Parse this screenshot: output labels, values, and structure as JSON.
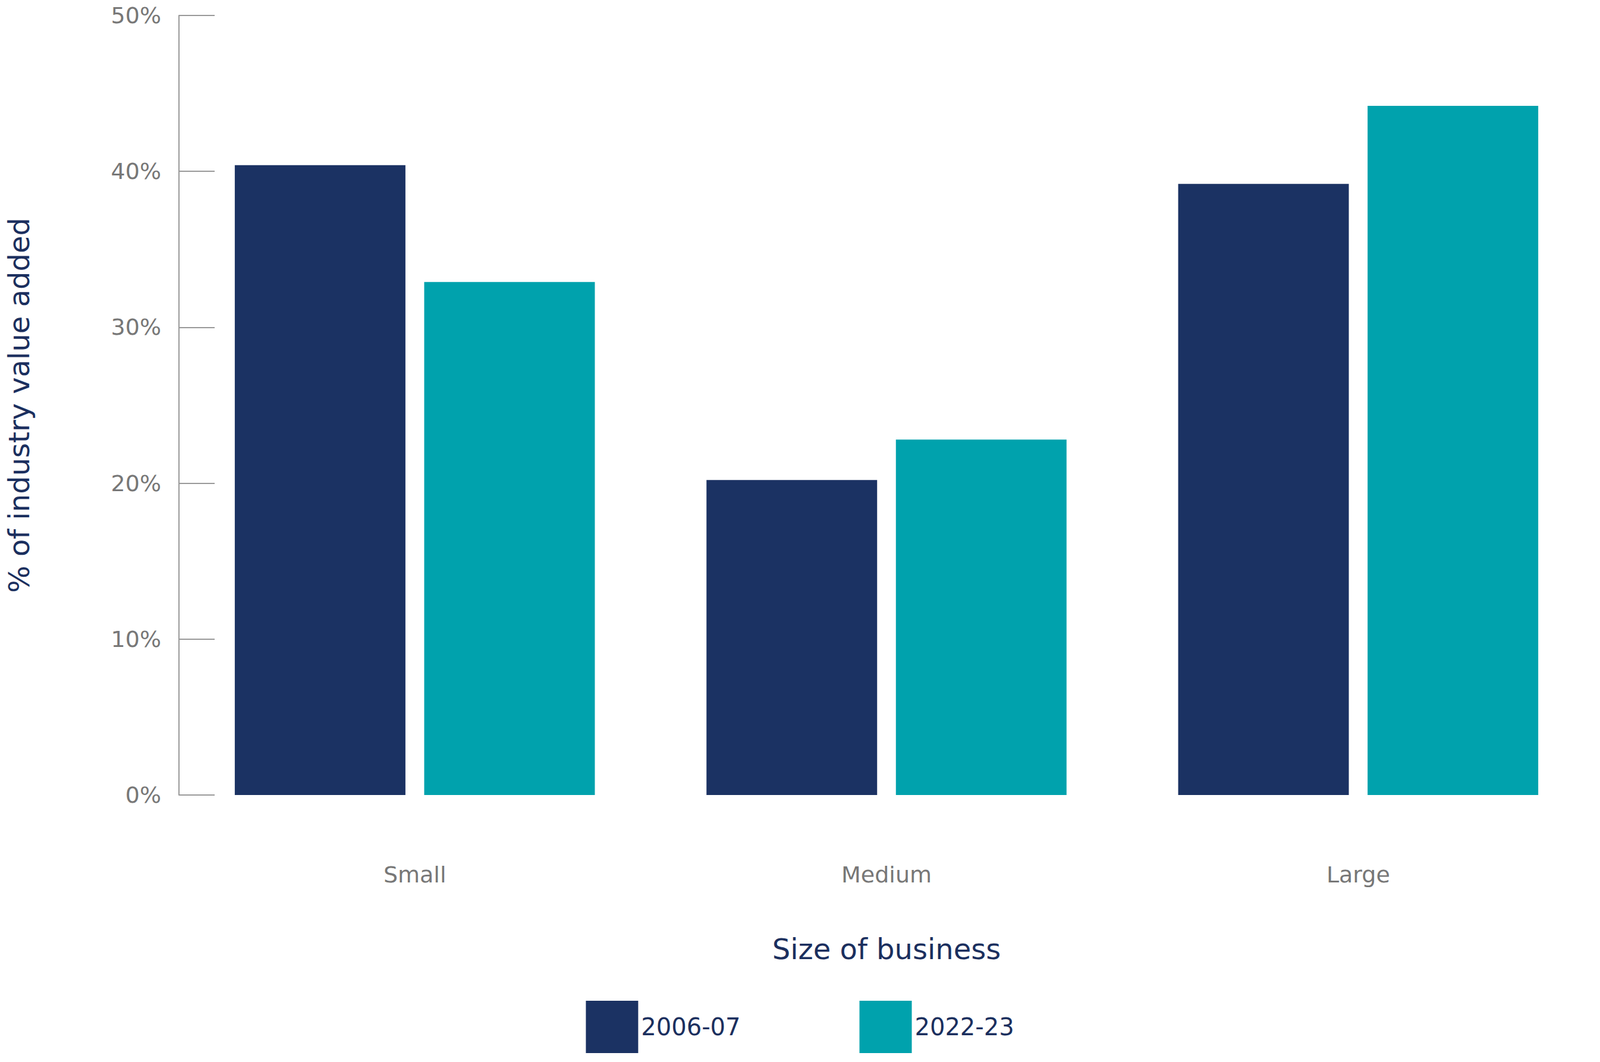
{
  "chart_data": {
    "type": "bar",
    "x_label": "Size of business",
    "y_label": "% of industry value added",
    "categories": [
      "Small",
      "Medium",
      "Large"
    ],
    "series": [
      {
        "name": "2006-07",
        "color": "#1b3263",
        "values": [
          40.4,
          20.2,
          39.2
        ]
      },
      {
        "name": "2022-23",
        "color": "#00a2ad",
        "values": [
          32.9,
          22.8,
          44.2
        ]
      }
    ],
    "ylim": [
      0,
      50
    ],
    "yticks": [
      {
        "value": 0,
        "label": "0%"
      },
      {
        "value": 10,
        "label": "10%"
      },
      {
        "value": 20,
        "label": "20%"
      },
      {
        "value": 30,
        "label": "30%"
      },
      {
        "value": 40,
        "label": "40%"
      },
      {
        "value": 50,
        "label": "50%"
      }
    ],
    "grid": false,
    "legend": "bottom",
    "data_labels": false
  }
}
